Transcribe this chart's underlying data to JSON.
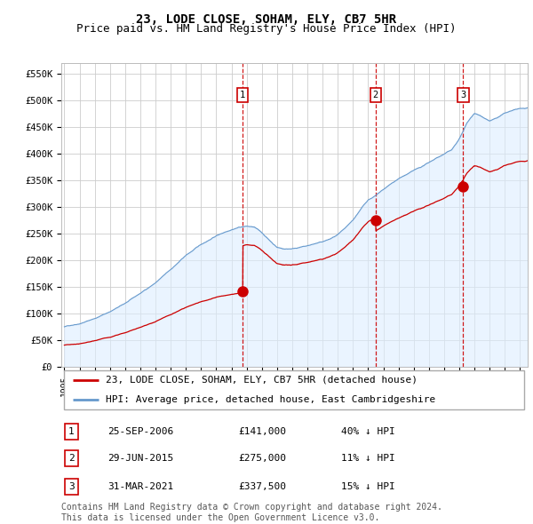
{
  "title": "23, LODE CLOSE, SOHAM, ELY, CB7 5HR",
  "subtitle": "Price paid vs. HM Land Registry's House Price Index (HPI)",
  "ylim": [
    0,
    570000
  ],
  "xlim_start": 1994.8,
  "xlim_end": 2025.5,
  "yticks": [
    0,
    50000,
    100000,
    150000,
    200000,
    250000,
    300000,
    350000,
    400000,
    450000,
    500000,
    550000
  ],
  "ytick_labels": [
    "£0",
    "£50K",
    "£100K",
    "£150K",
    "£200K",
    "£250K",
    "£300K",
    "£350K",
    "£400K",
    "£450K",
    "£500K",
    "£550K"
  ],
  "sale_dates": [
    2006.73,
    2015.49,
    2021.25
  ],
  "sale_prices": [
    141000,
    275000,
    337500
  ],
  "sale_labels": [
    "1",
    "2",
    "3"
  ],
  "sale_color": "#cc0000",
  "hpi_color": "#6699cc",
  "hpi_fill_color": "#ddeeff",
  "vline_color": "#cc0000",
  "grid_color": "#cccccc",
  "legend_label_red": "23, LODE CLOSE, SOHAM, ELY, CB7 5HR (detached house)",
  "legend_label_blue": "HPI: Average price, detached house, East Cambridgeshire",
  "table_rows": [
    {
      "num": "1",
      "date": "25-SEP-2006",
      "price": "£141,000",
      "pct": "40% ↓ HPI"
    },
    {
      "num": "2",
      "date": "29-JUN-2015",
      "price": "£275,000",
      "pct": "11% ↓ HPI"
    },
    {
      "num": "3",
      "date": "31-MAR-2021",
      "price": "£337,500",
      "pct": "15% ↓ HPI"
    }
  ],
  "footer": "Contains HM Land Registry data © Crown copyright and database right 2024.\nThis data is licensed under the Open Government Licence v3.0.",
  "title_fontsize": 10,
  "subtitle_fontsize": 9,
  "tick_fontsize": 7.5,
  "legend_fontsize": 8,
  "table_fontsize": 8,
  "footer_fontsize": 7
}
